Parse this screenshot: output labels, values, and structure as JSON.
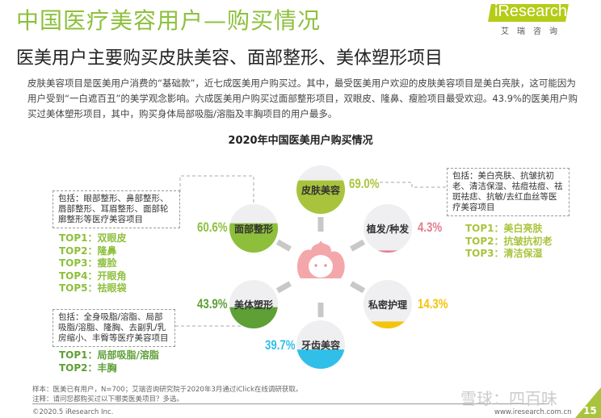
{
  "header": {
    "title": "中国医疗美容用户—购买情况",
    "subtitle": "医美用户主要购买皮肤美容、面部整形、美体塑形项目",
    "logo": "iResearch",
    "logo_cn": "艾瑞咨询"
  },
  "paragraph": "皮肤美容项目是医美用户消费的“基础款”，近七成医美用户购买过。其中，最受医美用户欢迎的皮肤美容项目是美白亮肤，这可能因为用户受到“一白遮百丑”的美学观念影响。六成医美用户购买过面部整形项目，双眼皮、隆鼻、瘦脸项目最受欢迎。43.9%的医美用户购买过美体塑形项目，其中，购买身体局部吸脂/溶脂及丰胸项目的用户最多。",
  "chart_data": {
    "type": "bar",
    "title": "2020年中国医美用户购买情况",
    "categories": [
      "皮肤美容",
      "面部整形",
      "植发/种发",
      "美体塑形",
      "私密护理",
      "牙齿美容"
    ],
    "values": [
      69.0,
      60.6,
      4.3,
      43.9,
      14.3,
      39.7
    ],
    "labels": [
      "69.0%",
      "60.6%",
      "4.3%",
      "43.9%",
      "14.3%",
      "39.7%"
    ],
    "colors": [
      "#a9c43c",
      "#8dbf3a",
      "#e27d8d",
      "#5e9f36",
      "#f3c40c",
      "#2fbfe9"
    ]
  },
  "boxes": {
    "face": {
      "text": "包括：眼部整形、鼻部整形、唇部整形、耳眉整形、面部轮廓整形等医疗美容项目",
      "tops": [
        "TOP1：双眼皮",
        "TOP2：隆鼻",
        "TOP3：瘦脸",
        "TOP4：开眼角",
        "TOP5：祛眼袋"
      ]
    },
    "body": {
      "text": "包括：全身吸脂/溶脂、局部吸脂/溶脂、隆胸、去副乳/乳房缩小、丰臀等医疗美容项目",
      "tops": [
        "TOP1：局部吸脂/溶脂",
        "TOP2：丰胸"
      ]
    },
    "skin": {
      "text": "包括：美白亮肤、抗皱抗初老、清洁保湿、祛痘祛痘、祛斑祛痣、抗敏/去红血丝等医疗美容项目",
      "tops": [
        "TOP1：美白亮肤",
        "TOP2：抗皱抗初老",
        "TOP3：清洁保湿"
      ]
    }
  },
  "footer": {
    "sample": "样本：医美已有用户，N=700；艾瑞咨询研究院于2020年3月通过iClick在线调研获取。",
    "note": "注释：请问您都购买过以下哪类医美项目？多选。",
    "copyright": "©2020.5 iResearch Inc.",
    "url": "www.iresearch.com.cn",
    "watermark": "雪球：四百味",
    "page": "15"
  }
}
